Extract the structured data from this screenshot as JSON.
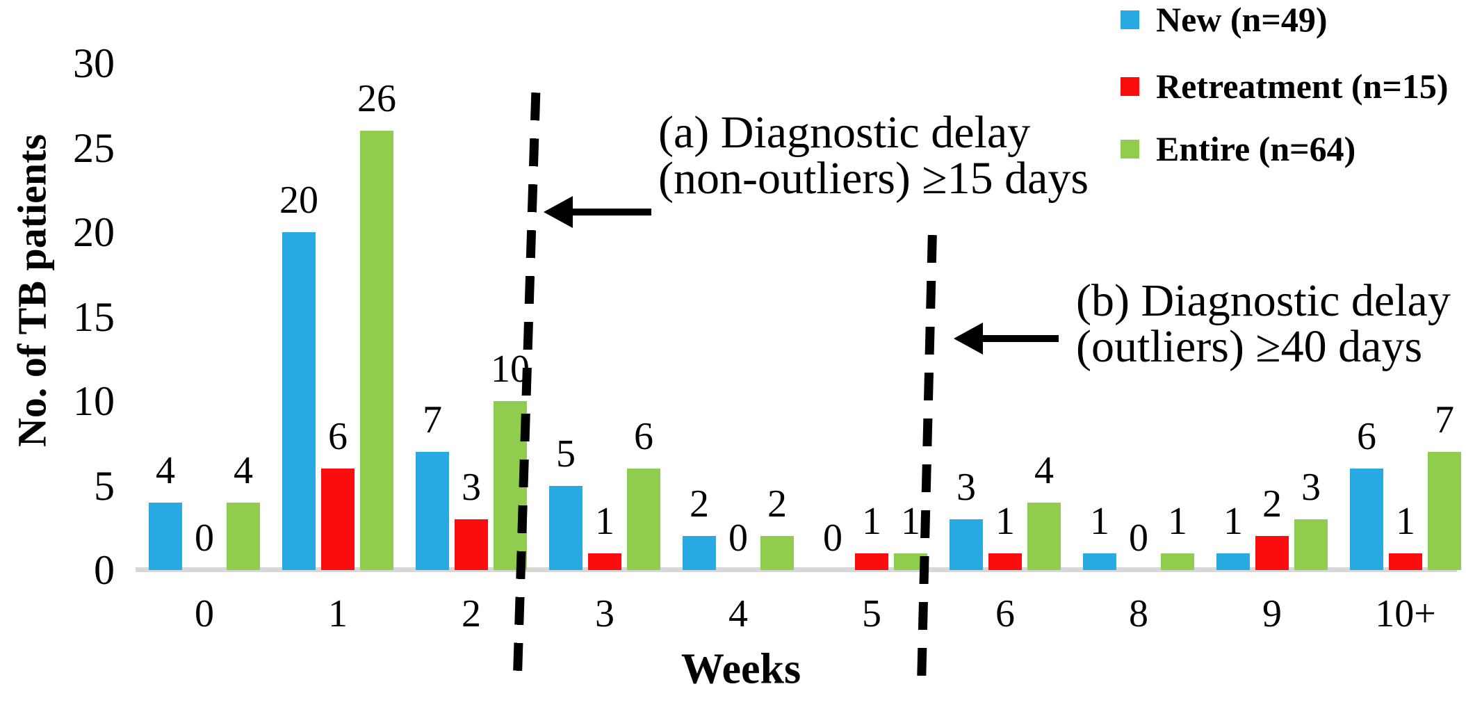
{
  "chart_data": {
    "type": "bar",
    "title": "",
    "xlabel": "Weeks",
    "ylabel": "No. of TB patients",
    "ylim": [
      0,
      30
    ],
    "yticks": [
      0,
      5,
      10,
      15,
      20,
      25,
      30
    ],
    "grid": false,
    "bar_value_labels_shown": true,
    "legend_position": "top-right",
    "categories": [
      "0",
      "1",
      "2",
      "3",
      "4",
      "5",
      "6",
      "8",
      "9",
      "10+"
    ],
    "series": [
      {
        "key": "new",
        "name": "New (n=49)",
        "color": "#29A9E1",
        "values": [
          4,
          20,
          7,
          5,
          2,
          0,
          3,
          1,
          1,
          6
        ]
      },
      {
        "key": "retreatment",
        "name": "Retreatment (n=15)",
        "color": "#FB0D0D",
        "values": [
          0,
          6,
          3,
          1,
          0,
          1,
          1,
          0,
          2,
          1
        ]
      },
      {
        "key": "entire",
        "name": "Entire (n=64)",
        "color": "#90CC4E",
        "values": [
          4,
          26,
          10,
          6,
          2,
          1,
          4,
          1,
          3,
          7
        ]
      }
    ],
    "annotations": [
      {
        "id": "a",
        "lines": [
          "(a) Diagnostic delay",
          "(non-outliers) ≥15 days"
        ],
        "divider_between_weeks": "2 and 3",
        "arrow": "points-left-to-dashed-divider"
      },
      {
        "id": "b",
        "lines": [
          "(b) Diagnostic delay",
          "(outliers) ≥40 days"
        ],
        "divider_between_weeks": "5 and 6",
        "arrow": "points-left-to-dashed-divider"
      }
    ],
    "axis_line_color": "#D7D7D7"
  }
}
